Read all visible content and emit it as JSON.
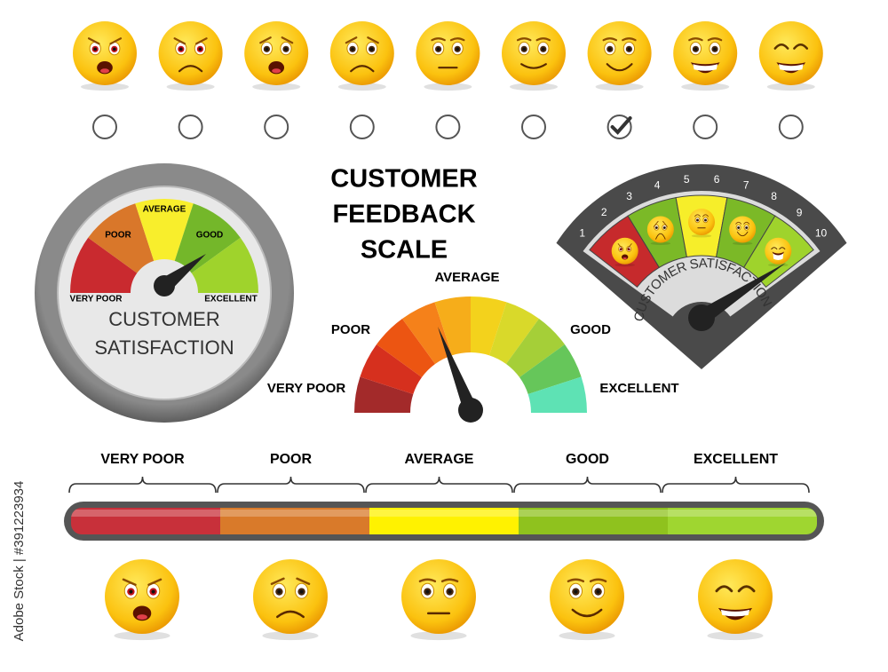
{
  "title": [
    "CUSTOMER",
    "FEEDBACK",
    "SCALE"
  ],
  "rating_row": {
    "checked": [
      false,
      false,
      false,
      false,
      false,
      false,
      true,
      false,
      false
    ]
  },
  "left_gauge": {
    "labels": [
      "VERY POOR",
      "POOR",
      "AVERAGE",
      "GOOD",
      "EXCELLENT"
    ],
    "caption": [
      "CUSTOMER",
      "SATISFACTION"
    ]
  },
  "center_gauge": {
    "labels": [
      "VERY POOR",
      "POOR",
      "AVERAGE",
      "GOOD",
      "EXCELLENT"
    ]
  },
  "right_gauge": {
    "numbers": [
      1,
      2,
      3,
      4,
      5,
      6,
      7,
      8,
      9,
      10
    ],
    "caption": "CUSTOMER SATISFACTION"
  },
  "bar_scale": {
    "labels": [
      "VERY POOR",
      "POOR",
      "AVERAGE",
      "GOOD",
      "EXCELLENT"
    ]
  },
  "watermark": "Adobe Stock | #391223934"
}
